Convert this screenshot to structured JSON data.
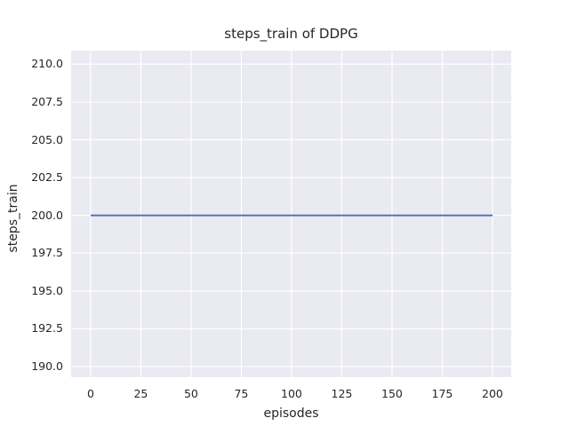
{
  "chart_data": {
    "type": "line",
    "title": "steps_train of DDPG",
    "xlabel": "episodes",
    "ylabel": "steps_train",
    "x_tick_values": [
      0,
      25,
      50,
      75,
      100,
      125,
      150,
      175,
      200
    ],
    "x_tick_labels": [
      "0",
      "25",
      "50",
      "75",
      "100",
      "125",
      "150",
      "175",
      "200"
    ],
    "y_tick_values": [
      190.0,
      192.5,
      195.0,
      197.5,
      200.0,
      202.5,
      205.0,
      207.5,
      210.0
    ],
    "y_tick_labels": [
      "190.0",
      "192.5",
      "195.0",
      "197.5",
      "200.0",
      "202.5",
      "205.0",
      "207.5",
      "210.0"
    ],
    "xlim": [
      -9.7,
      209.3
    ],
    "ylim": [
      189.3,
      210.9
    ],
    "grid": true,
    "legend": "none",
    "series": [
      {
        "name": "steps_train",
        "color": "#4c72b0",
        "x": [
          0,
          200
        ],
        "y": [
          200,
          200
        ],
        "note": "constant value 200 across all episodes"
      }
    ],
    "plot_bg_color": "#eaeaf2",
    "gridline_color": "#ffffff",
    "text_color": "#262626"
  }
}
